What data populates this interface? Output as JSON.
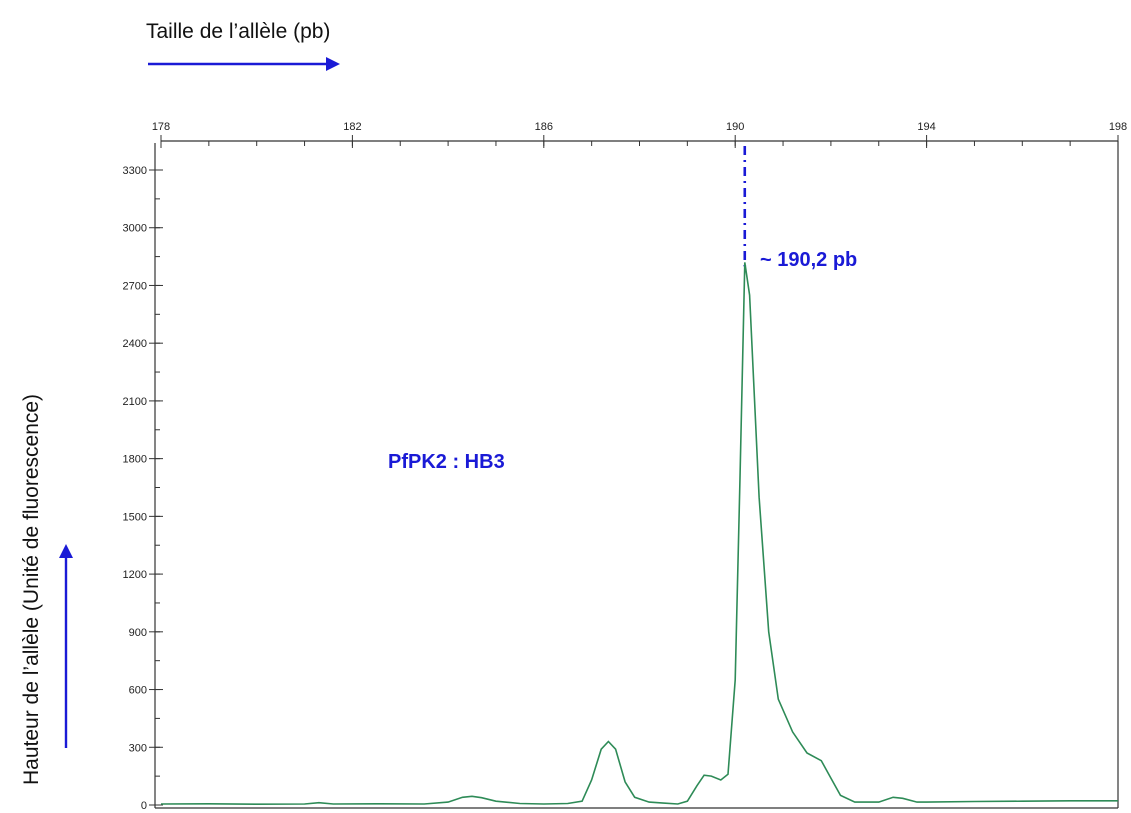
{
  "chart_data": {
    "type": "line",
    "title": "",
    "xlabel": "Taille de l’allèle (pb)",
    "ylabel": "Hauteur de l’allèle (Unité   de fluorescence)",
    "xlim": [
      178,
      198
    ],
    "ylim": [
      -30,
      3400
    ],
    "x_ticks": [
      "178",
      "182",
      "186",
      "190",
      "194",
      "198"
    ],
    "y_ticks": [
      "0",
      "300",
      "600",
      "900",
      "1200",
      "1500",
      "1800",
      "2100",
      "2400",
      "2700",
      "3000",
      "3300"
    ],
    "x_tick_values": [
      178,
      182,
      186,
      190,
      194,
      198
    ],
    "y_tick_values": [
      0,
      300,
      600,
      900,
      1200,
      1500,
      1800,
      2100,
      2400,
      2700,
      3000,
      3300
    ],
    "grid": false,
    "legend": "none",
    "series": [
      {
        "color": "#2e8b57",
        "points": [
          [
            178.0,
            5
          ],
          [
            179.0,
            6
          ],
          [
            180.0,
            4
          ],
          [
            181.0,
            5
          ],
          [
            181.3,
            12
          ],
          [
            181.6,
            5
          ],
          [
            182.5,
            6
          ],
          [
            183.5,
            5
          ],
          [
            184.0,
            15
          ],
          [
            184.3,
            40
          ],
          [
            184.5,
            45
          ],
          [
            184.7,
            38
          ],
          [
            185.0,
            20
          ],
          [
            185.5,
            8
          ],
          [
            186.0,
            5
          ],
          [
            186.5,
            8
          ],
          [
            186.8,
            20
          ],
          [
            187.0,
            130
          ],
          [
            187.2,
            290
          ],
          [
            187.35,
            330
          ],
          [
            187.5,
            290
          ],
          [
            187.7,
            120
          ],
          [
            187.9,
            40
          ],
          [
            188.2,
            15
          ],
          [
            188.5,
            10
          ],
          [
            188.8,
            5
          ],
          [
            189.0,
            20
          ],
          [
            189.2,
            100
          ],
          [
            189.35,
            155
          ],
          [
            189.5,
            150
          ],
          [
            189.7,
            130
          ],
          [
            189.85,
            160
          ],
          [
            190.0,
            650
          ],
          [
            190.1,
            1700
          ],
          [
            190.2,
            2820
          ],
          [
            190.3,
            2650
          ],
          [
            190.5,
            1600
          ],
          [
            190.7,
            900
          ],
          [
            190.9,
            550
          ],
          [
            191.2,
            380
          ],
          [
            191.5,
            270
          ],
          [
            191.8,
            230
          ],
          [
            192.0,
            140
          ],
          [
            192.2,
            50
          ],
          [
            192.5,
            15
          ],
          [
            193.0,
            15
          ],
          [
            193.3,
            40
          ],
          [
            193.5,
            35
          ],
          [
            193.8,
            15
          ],
          [
            194.0,
            15
          ],
          [
            195.0,
            18
          ],
          [
            196.0,
            20
          ],
          [
            197.0,
            22
          ],
          [
            198.0,
            22
          ]
        ]
      }
    ],
    "annotations": [
      {
        "text": "~ 190,2 pb",
        "x": 190.2,
        "y": 2820
      },
      {
        "text": "PfPK2 : HB3"
      }
    ],
    "accent_color": "#1a1ad6"
  }
}
